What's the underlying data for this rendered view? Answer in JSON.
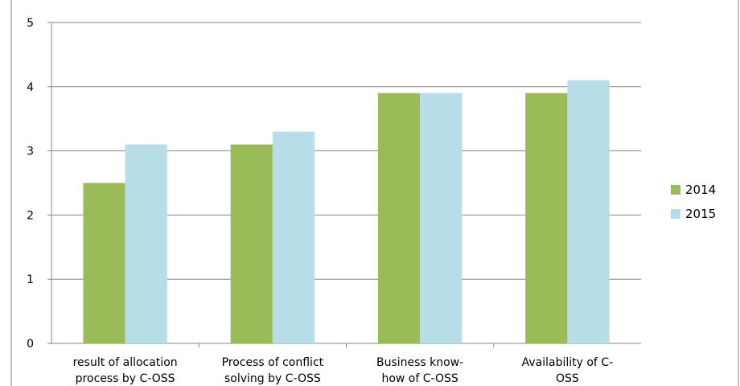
{
  "chart_data": {
    "type": "bar",
    "title": "",
    "xlabel": "",
    "ylabel": "",
    "categories": [
      [
        "result of allocation",
        "process by C-OSS"
      ],
      [
        "Process of conflict",
        "solving by C-OSS"
      ],
      [
        "Business know-",
        "how of C-OSS"
      ],
      [
        "Availability of C-",
        "OSS"
      ]
    ],
    "series": [
      {
        "name": "2014",
        "color": "#9bbb59",
        "values": [
          2.5,
          3.1,
          3.9,
          3.9
        ]
      },
      {
        "name": "2015",
        "color": "#b7dde8",
        "values": [
          3.1,
          3.3,
          3.9,
          4.1
        ]
      }
    ],
    "ylim": [
      0,
      5
    ],
    "yticks": [
      0,
      1,
      2,
      3,
      4,
      5
    ],
    "grid": true,
    "legend_position": "right"
  }
}
